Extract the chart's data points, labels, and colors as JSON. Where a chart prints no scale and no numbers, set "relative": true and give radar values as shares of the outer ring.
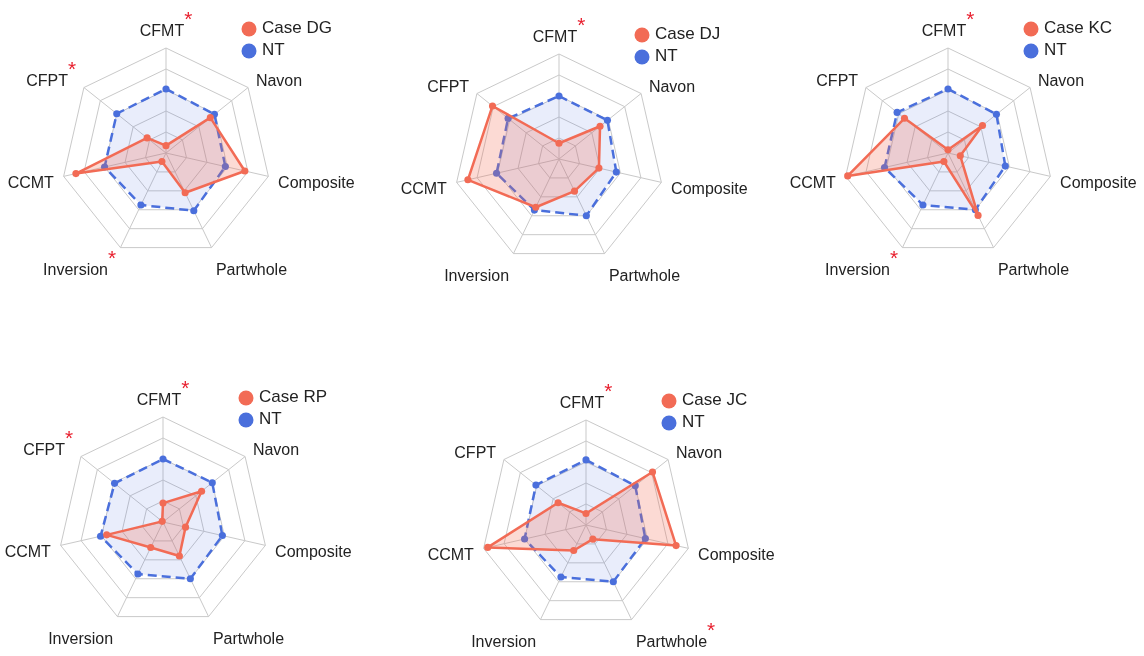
{
  "chart_data": [
    {
      "type": "radar",
      "relative": true,
      "legend": "top right",
      "marker": "circle",
      "categories": [
        "CFMT$^{*}$",
        "Navon",
        "Composite",
        "Partwhole",
        "Inversion$^{*}$",
        "CCMT",
        "CFPT$^{*}$"
      ],
      "series": [
        {
          "name": "Case DG",
          "color": "#f26b55",
          "values": [
            0.07,
            0.54,
            0.77,
            0.42,
            0.09,
            0.88,
            0.23
          ]
        },
        {
          "name": "NT",
          "color": "#4a6fdc",
          "line_style": "dashed",
          "values": [
            0.61,
            0.59,
            0.58,
            0.61,
            0.55,
            0.6,
            0.6
          ]
        }
      ]
    },
    {
      "type": "radar",
      "relative": true,
      "legend": "top right",
      "marker": "circle",
      "categories": [
        "CFMT$^{*}$",
        "Navon",
        "Composite",
        "Partwhole",
        "Inversion",
        "CCMT",
        "CFPT"
      ],
      "series": [
        {
          "name": "Case DJ",
          "color": "#f26b55",
          "values": [
            0.15,
            0.5,
            0.39,
            0.34,
            0.51,
            0.89,
            0.81
          ]
        },
        {
          "name": "NT",
          "color": "#4a6fdc",
          "line_style": "dashed",
          "values": [
            0.6,
            0.59,
            0.56,
            0.6,
            0.54,
            0.61,
            0.62
          ]
        }
      ]
    },
    {
      "type": "radar",
      "relative": true,
      "legend": "top right",
      "marker": "circle",
      "categories": [
        "CFMT$^{*}$",
        "Navon",
        "Composite",
        "Partwhole",
        "Inversion$^{*}$",
        "CCMT",
        "CFPT"
      ],
      "series": [
        {
          "name": "Case KC",
          "color": "#f26b55",
          "values": [
            0.03,
            0.42,
            0.12,
            0.66,
            0.09,
            0.98,
            0.53
          ]
        },
        {
          "name": "NT",
          "color": "#4a6fdc",
          "line_style": "dashed",
          "values": [
            0.61,
            0.59,
            0.56,
            0.6,
            0.55,
            0.62,
            0.62
          ]
        }
      ]
    },
    {
      "type": "radar",
      "relative": true,
      "legend": "top right",
      "marker": "circle",
      "categories": [
        "CFMT$^{*}$",
        "Navon",
        "Composite",
        "Partwhole",
        "Inversion",
        "CCMT",
        "CFPT$^{*}$"
      ],
      "series": [
        {
          "name": "Case RP",
          "color": "#f26b55",
          "values": [
            0.18,
            0.47,
            0.22,
            0.36,
            0.27,
            0.55,
            0.01
          ]
        },
        {
          "name": "NT",
          "color": "#4a6fdc",
          "line_style": "dashed",
          "values": [
            0.6,
            0.6,
            0.58,
            0.6,
            0.55,
            0.61,
            0.59
          ]
        }
      ]
    },
    {
      "type": "radar",
      "relative": true,
      "legend": "top right",
      "marker": "circle",
      "categories": [
        "CFMT$^{*}$",
        "Navon",
        "Composite",
        "Partwhole$^{*}$",
        "Inversion",
        "CCMT",
        "CFPT"
      ],
      "series": [
        {
          "name": "Case JC",
          "color": "#f26b55",
          "values": [
            0.11,
            0.81,
            0.88,
            0.15,
            0.27,
            0.96,
            0.34
          ]
        },
        {
          "name": "NT",
          "color": "#4a6fdc",
          "line_style": "dashed",
          "values": [
            0.62,
            0.6,
            0.58,
            0.6,
            0.55,
            0.6,
            0.61
          ]
        }
      ]
    }
  ]
}
